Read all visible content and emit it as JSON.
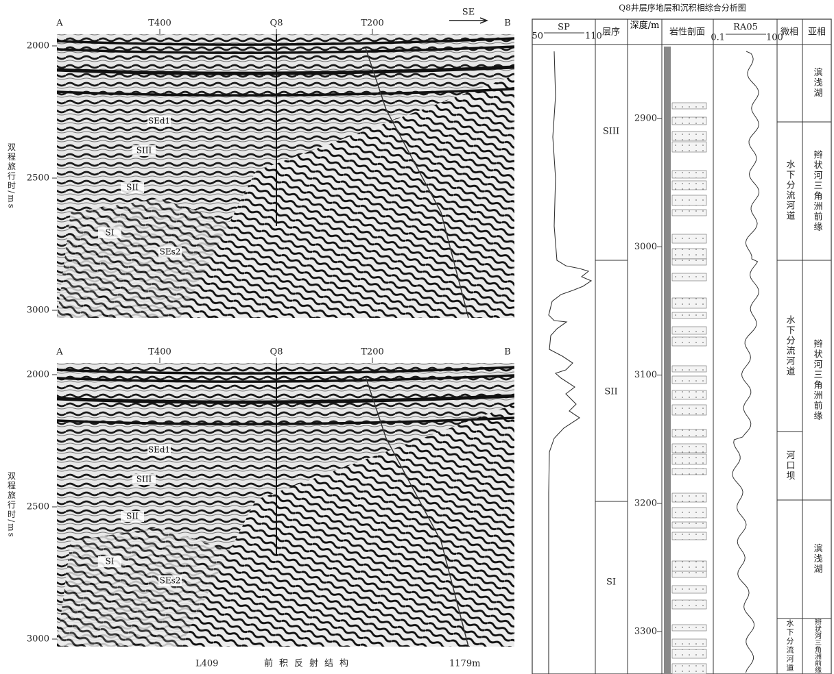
{
  "figure_caption": [
    "L409",
    "前积反射结构",
    "1179m"
  ],
  "sections": [
    {
      "labels": [
        "A",
        "T400",
        "Q8",
        "T200",
        "B"
      ],
      "direction": "SE",
      "y_label": "双程旅行时/ms",
      "yticks": [
        2000,
        2500,
        3000
      ],
      "horizons": [
        "SEd1",
        "SIII",
        "SII",
        "SI",
        "SEs2"
      ]
    },
    {
      "labels": [
        "A",
        "T400",
        "Q8",
        "T200",
        "B"
      ],
      "y_label": "双程旅行时/ms",
      "yticks": [
        2000,
        2500,
        3000
      ],
      "horizons": [
        "SEd1",
        "SIII",
        "SII",
        "SI",
        "SEs2"
      ]
    }
  ],
  "well": {
    "title": "Q8井层序地层和沉积相综合分析图",
    "headers": {
      "sp": "SP",
      "sp_min": "50",
      "sp_max": "110",
      "sequence": "层序",
      "depth": "深度/m",
      "lithology": "岩性剖面",
      "ra": "RA05",
      "ra_min": "0.1",
      "ra_max": "100",
      "microfacies": "微相",
      "subfacies": "亚相"
    },
    "depth_ticks": [
      2900,
      3000,
      3100,
      3200,
      3300
    ],
    "sequences": [
      "SIII",
      "SII",
      "SI"
    ],
    "microfacies": [
      "水下分流河道",
      "水下分流河道",
      "河口坝",
      "水下分流河道"
    ],
    "subfacies": [
      "滨浅湖",
      "辫状河三角洲前缘",
      "辫状河三角洲前缘",
      "滨浅湖",
      "辫状河三角洲前缘"
    ]
  }
}
